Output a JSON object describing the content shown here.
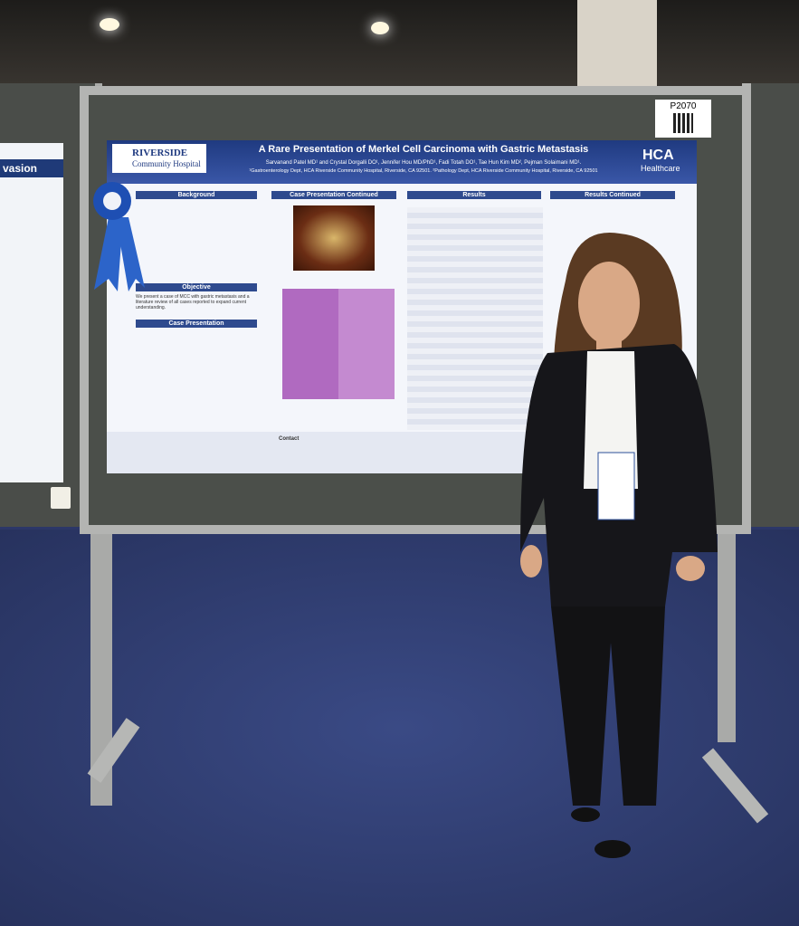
{
  "board_number": "P2070",
  "poster": {
    "title": "A Rare Presentation of Merkel Cell Carcinoma with Gastric Metastasis",
    "authors": "Sarvanand Patel MD¹ and Crystal Dorgalli DO¹, Jennifer Hou MD/PhD¹, Fadi Totah DO¹, Tae Hun Kim MD², Pejman Solaimani MD¹.",
    "affiliations": "¹Gastroenterology Dept, HCA Riverside Community Hospital, Riverside, CA 92501. ²Pathology Dept, HCA Riverside Community Hospital, Riverside, CA 92501",
    "logo_left": {
      "name": "RIVERSIDE",
      "subname": "Community Hospital"
    },
    "logo_right": {
      "name": "HCA",
      "subname": "Healthcare"
    },
    "sections": {
      "background": "Background",
      "case_continued": "Case Presentation Continued",
      "results": "Results",
      "results_continued": "Results Continued",
      "objective": "Objective",
      "case": "Case Presentation",
      "contact": "Contact"
    },
    "objective_text": "We present a case of MCC with gastric metastasis and a literature review of all cases reported to expand current understanding."
  },
  "left_poster": {
    "heading": "vasion"
  }
}
